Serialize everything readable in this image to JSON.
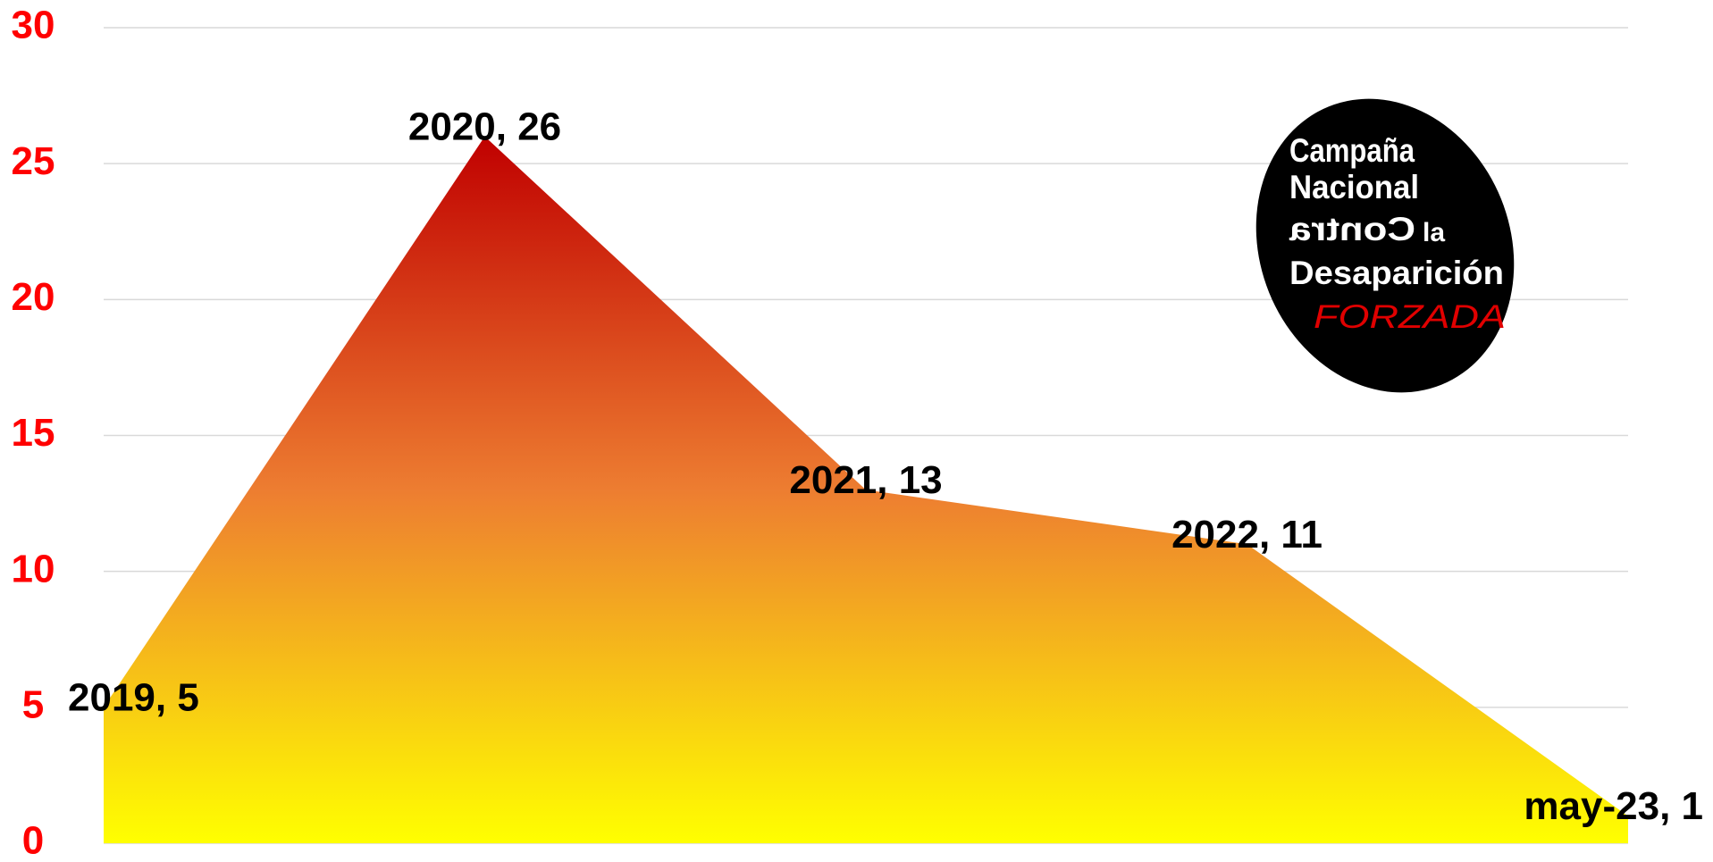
{
  "chart_data": {
    "type": "area",
    "categories": [
      "2019",
      "2020",
      "2021",
      "2022",
      "may-23"
    ],
    "values": [
      5,
      26,
      13,
      11,
      1
    ],
    "value_labels": [
      "2019, 5",
      "2020, 26",
      "2021, 13",
      "2022, 11",
      "may-23, 1"
    ],
    "gradient": [
      "#c00000",
      "#ed7d31",
      "#ffff00"
    ],
    "tick_color": "#ff0000",
    "ylim": [
      0,
      30
    ],
    "yticks": [
      0,
      5,
      10,
      15,
      20,
      25,
      30
    ],
    "grid": true
  },
  "logo": {
    "lines": [
      "Campaña",
      "Nacional",
      "Contra",
      "la",
      "Desaparición",
      "FORZADA"
    ]
  }
}
